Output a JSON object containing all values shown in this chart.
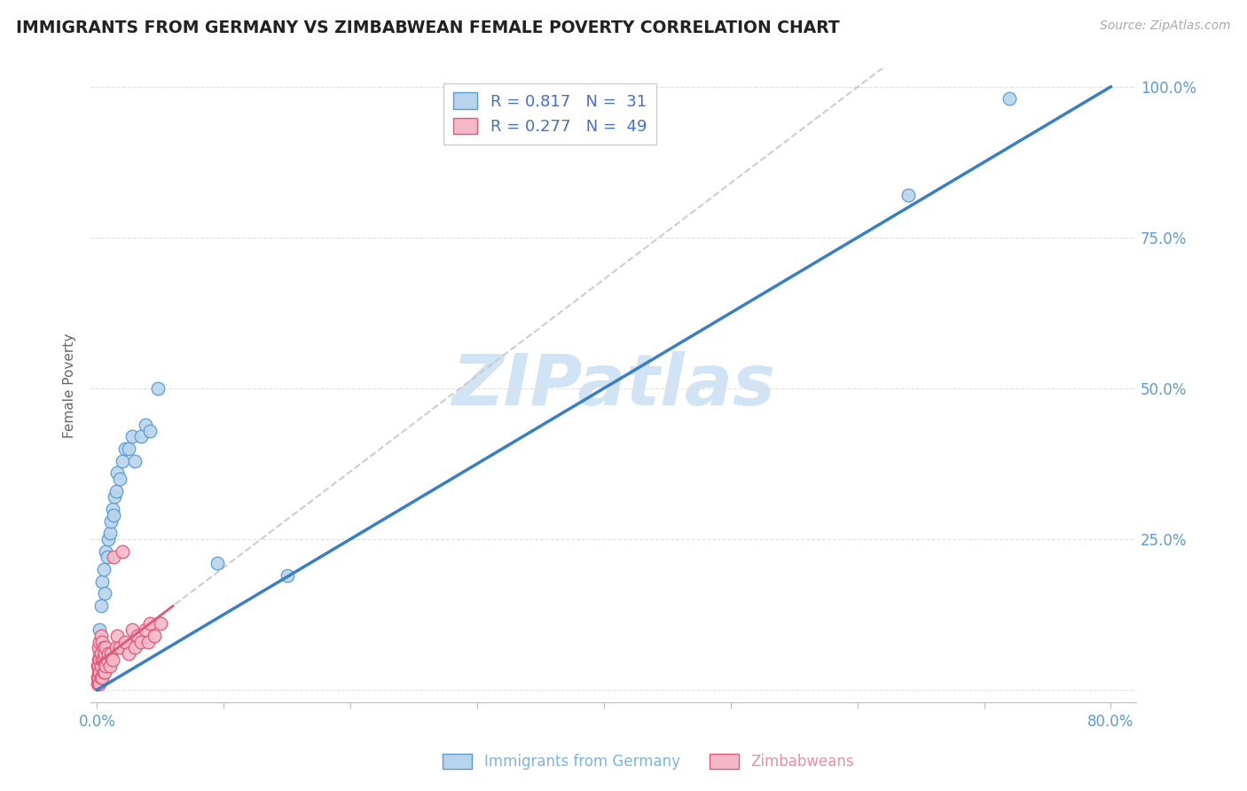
{
  "title": "IMMIGRANTS FROM GERMANY VS ZIMBABWEAN FEMALE POVERTY CORRELATION CHART",
  "source": "Source: ZipAtlas.com",
  "ylabel": "Female Poverty",
  "legend1_label": "Immigrants from Germany",
  "legend2_label": "Zimbabweans",
  "legend1_R": "0.817",
  "legend1_N": "31",
  "legend2_R": "0.277",
  "legend2_N": "49",
  "xlim": [
    -0.005,
    0.82
  ],
  "ylim": [
    -0.02,
    1.03
  ],
  "xtick_positions": [
    0.0,
    0.1,
    0.2,
    0.3,
    0.4,
    0.5,
    0.6,
    0.7,
    0.8
  ],
  "xtick_labels": [
    "0.0%",
    "",
    "",
    "",
    "",
    "",
    "",
    "",
    "80.0%"
  ],
  "ytick_positions": [
    0.0,
    0.25,
    0.5,
    0.75,
    1.0
  ],
  "ytick_labels": [
    "",
    "25.0%",
    "50.0%",
    "75.0%",
    "100.0%"
  ],
  "background_color": "#ffffff",
  "plot_bg_color": "#ffffff",
  "grid_color": "#e0e0e0",
  "title_color": "#222222",
  "axis_tick_color": "#5b9bd5",
  "blue_scatter_color": "#b8d4ed",
  "blue_scatter_edge": "#5b9bd5",
  "pink_scatter_color": "#f5b8c8",
  "pink_scatter_edge": "#e05878",
  "blue_line_color": "#3a7ec6",
  "pink_line_color": "#e05878",
  "dashed_line_color": "#c8c8c8",
  "watermark_color": "#d0e4f5",
  "germany_points_x": [
    0.001,
    0.002,
    0.002,
    0.003,
    0.004,
    0.005,
    0.006,
    0.007,
    0.008,
    0.009,
    0.01,
    0.011,
    0.012,
    0.013,
    0.014,
    0.015,
    0.016,
    0.018,
    0.02,
    0.022,
    0.025,
    0.028,
    0.03,
    0.035,
    0.038,
    0.042,
    0.048,
    0.095,
    0.15,
    0.64,
    0.72
  ],
  "germany_points_y": [
    0.04,
    0.06,
    0.1,
    0.14,
    0.18,
    0.2,
    0.16,
    0.23,
    0.22,
    0.25,
    0.26,
    0.28,
    0.3,
    0.29,
    0.32,
    0.33,
    0.36,
    0.35,
    0.38,
    0.4,
    0.4,
    0.42,
    0.38,
    0.42,
    0.44,
    0.43,
    0.5,
    0.21,
    0.19,
    0.82,
    0.98
  ],
  "zimbabwe_points_x": [
    0.0005,
    0.0005,
    0.0005,
    0.001,
    0.001,
    0.001,
    0.001,
    0.001,
    0.0015,
    0.0015,
    0.002,
    0.002,
    0.002,
    0.002,
    0.003,
    0.003,
    0.003,
    0.003,
    0.004,
    0.004,
    0.004,
    0.005,
    0.005,
    0.005,
    0.006,
    0.006,
    0.007,
    0.007,
    0.008,
    0.009,
    0.01,
    0.011,
    0.012,
    0.013,
    0.015,
    0.016,
    0.018,
    0.02,
    0.022,
    0.025,
    0.028,
    0.03,
    0.032,
    0.035,
    0.038,
    0.04,
    0.042,
    0.045,
    0.05
  ],
  "zimbabwe_points_y": [
    0.01,
    0.02,
    0.04,
    0.01,
    0.02,
    0.03,
    0.05,
    0.07,
    0.02,
    0.04,
    0.01,
    0.03,
    0.05,
    0.08,
    0.02,
    0.04,
    0.06,
    0.09,
    0.02,
    0.05,
    0.08,
    0.03,
    0.05,
    0.07,
    0.03,
    0.06,
    0.04,
    0.07,
    0.05,
    0.06,
    0.04,
    0.06,
    0.05,
    0.22,
    0.07,
    0.09,
    0.07,
    0.23,
    0.08,
    0.06,
    0.1,
    0.07,
    0.09,
    0.08,
    0.1,
    0.08,
    0.11,
    0.09,
    0.11
  ]
}
